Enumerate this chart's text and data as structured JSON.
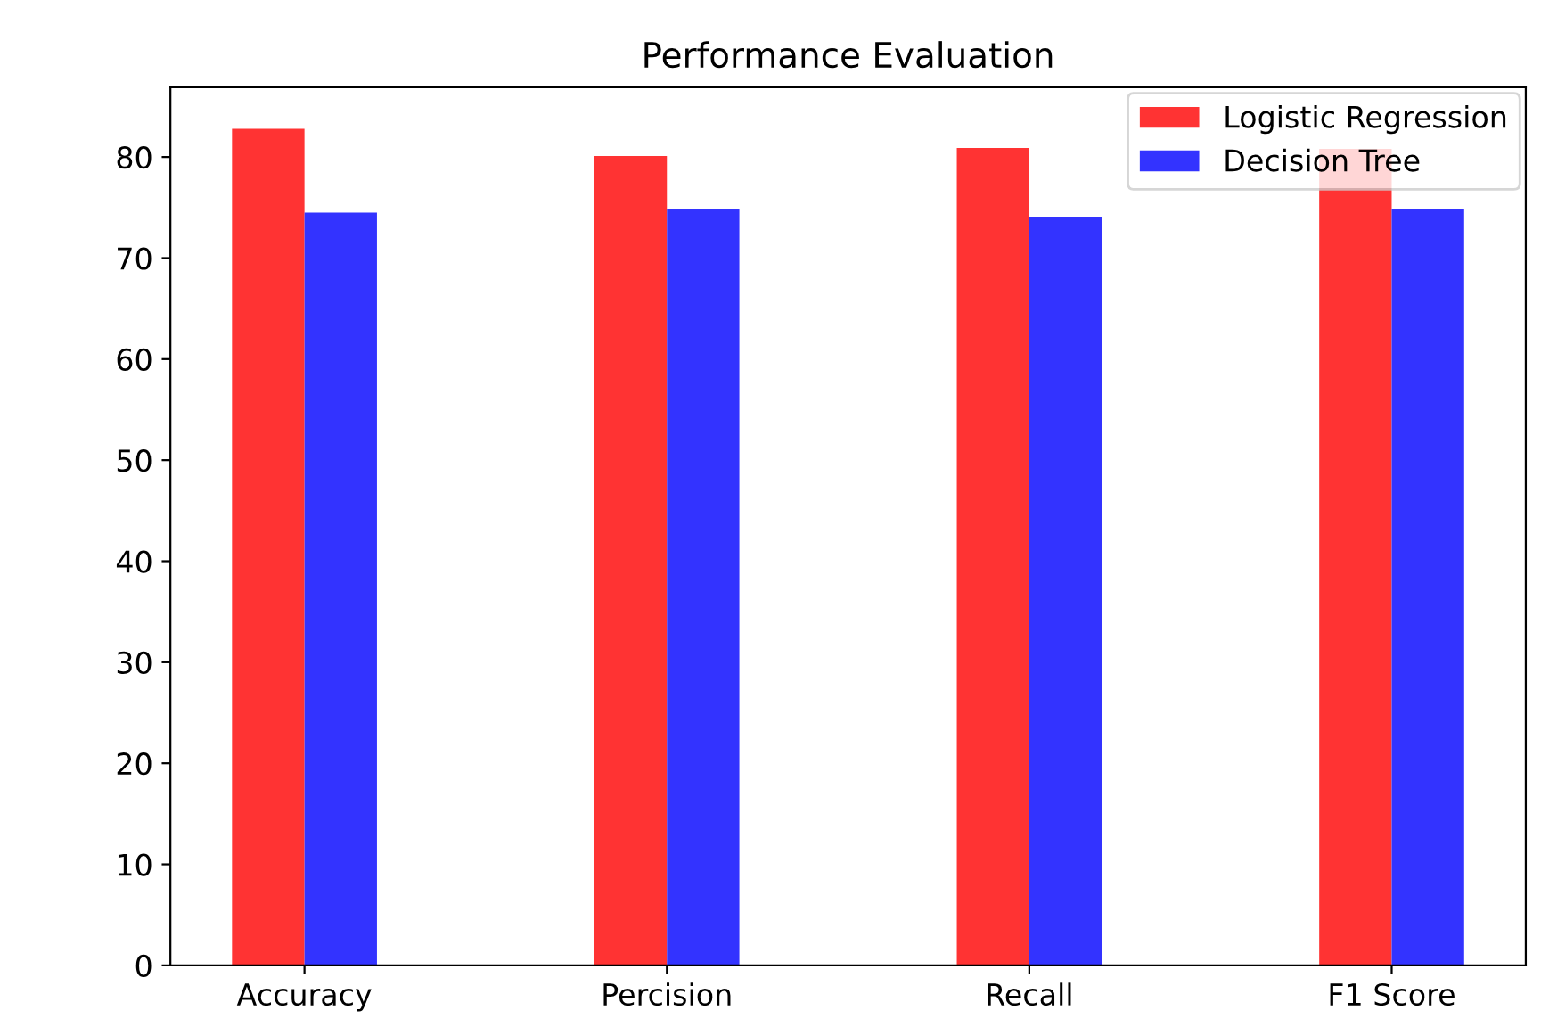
{
  "chart_data": {
    "type": "bar",
    "title": "Performance Evaluation",
    "categories": [
      "Accuracy",
      "Percision",
      "Recall",
      "F1 Score"
    ],
    "series": [
      {
        "name": "Logistic Regression",
        "color": "#ff3333",
        "values": [
          82.8,
          80.1,
          80.9,
          80.8
        ]
      },
      {
        "name": "Decision Tree",
        "color": "#3333ff",
        "values": [
          74.5,
          74.9,
          74.1,
          74.9
        ]
      }
    ],
    "ylim": [
      0,
      86.9
    ],
    "yticks": [
      0,
      10,
      20,
      30,
      40,
      50,
      60,
      70,
      80
    ],
    "grid": false,
    "legend": "top right"
  }
}
